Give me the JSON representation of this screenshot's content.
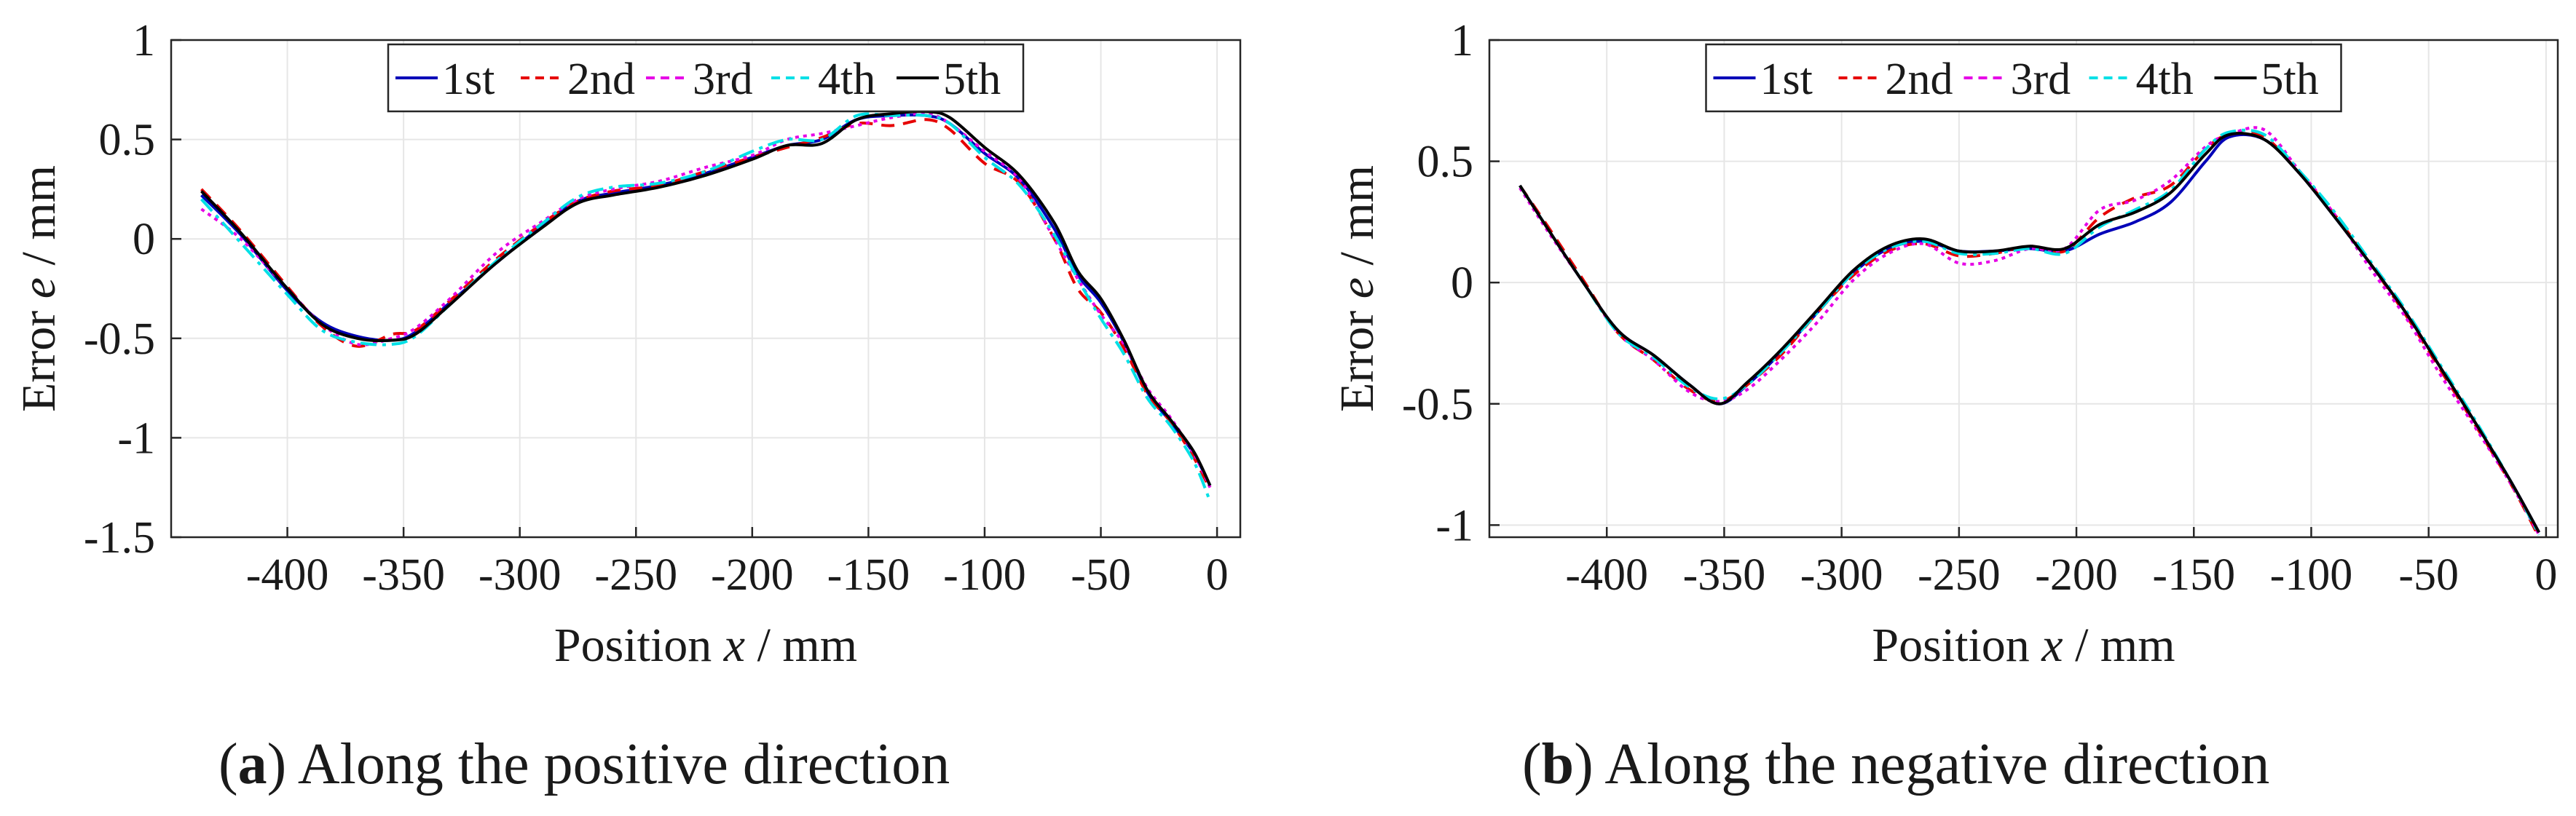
{
  "colors": {
    "1st": "#0000b8",
    "2nd": "#e60000",
    "3rd": "#e600e6",
    "4th": "#00e0e6",
    "5th": "#000000",
    "grid": "#e6e6e6",
    "axis": "#262626"
  },
  "chart_data": [
    {
      "type": "line",
      "panel_label": "a",
      "caption": "Along the positive direction",
      "xlabel_pre": "Position ",
      "xlabel_var": "x",
      "xlabel_post": " / mm",
      "ylabel_pre": "Error ",
      "ylabel_var": "e",
      "ylabel_post": " / mm",
      "xlim": [
        -450,
        10
      ],
      "ylim": [
        -1.5,
        1
      ],
      "xticks": [
        -400,
        -350,
        -300,
        -250,
        -200,
        -150,
        -100,
        -50,
        0
      ],
      "xtick_labels": [
        "-400",
        "-350",
        "-300",
        "-250",
        "-200",
        "-150",
        "-100",
        "-50",
        "0"
      ],
      "yticks": [
        1,
        0.5,
        0,
        -0.5,
        -1,
        -1.5
      ],
      "ytick_labels": [
        "1",
        "0.5",
        "0",
        "-0.5",
        "-1",
        "-1.5"
      ],
      "grid": true,
      "legend_position": "top-center",
      "x": [
        -437,
        -420,
        -400,
        -385,
        -370,
        -355,
        -345,
        -330,
        -310,
        -290,
        -275,
        -260,
        -240,
        -220,
        -200,
        -185,
        -170,
        -155,
        -140,
        -125,
        -115,
        -100,
        -85,
        -70,
        -60,
        -50,
        -40,
        -30,
        -20,
        -10,
        -3
      ],
      "series": [
        {
          "name": "1st",
          "values": [
            0.22,
            0.02,
            -0.26,
            -0.42,
            -0.49,
            -0.51,
            -0.47,
            -0.32,
            -0.12,
            0.07,
            0.19,
            0.23,
            0.27,
            0.33,
            0.41,
            0.47,
            0.5,
            0.6,
            0.62,
            0.62,
            0.58,
            0.43,
            0.3,
            0.05,
            -0.18,
            -0.32,
            -0.52,
            -0.77,
            -0.92,
            -1.08,
            -1.24
          ]
        },
        {
          "name": "2nd",
          "values": [
            0.25,
            0.04,
            -0.24,
            -0.44,
            -0.54,
            -0.48,
            -0.46,
            -0.31,
            -0.1,
            0.08,
            0.19,
            0.24,
            0.27,
            0.34,
            0.41,
            0.46,
            0.51,
            0.58,
            0.57,
            0.6,
            0.55,
            0.38,
            0.28,
            0.0,
            -0.25,
            -0.37,
            -0.55,
            -0.78,
            -0.92,
            -1.1,
            -1.26
          ]
        },
        {
          "name": "3rd",
          "values": [
            0.15,
            0.0,
            -0.25,
            -0.43,
            -0.53,
            -0.5,
            -0.45,
            -0.3,
            -0.07,
            0.09,
            0.2,
            0.25,
            0.29,
            0.36,
            0.42,
            0.5,
            0.53,
            0.57,
            0.61,
            0.63,
            0.58,
            0.44,
            0.3,
            0.0,
            -0.2,
            -0.38,
            -0.53,
            -0.75,
            -0.9,
            -1.08,
            -1.25
          ]
        },
        {
          "name": "4th",
          "values": [
            0.2,
            -0.02,
            -0.28,
            -0.46,
            -0.52,
            -0.53,
            -0.49,
            -0.33,
            -0.11,
            0.08,
            0.21,
            0.26,
            0.28,
            0.34,
            0.44,
            0.5,
            0.5,
            0.62,
            0.62,
            0.62,
            0.58,
            0.41,
            0.27,
            0.02,
            -0.2,
            -0.4,
            -0.58,
            -0.8,
            -0.94,
            -1.12,
            -1.32
          ]
        },
        {
          "name": "5th",
          "values": [
            0.24,
            0.03,
            -0.25,
            -0.43,
            -0.5,
            -0.51,
            -0.48,
            -0.33,
            -0.12,
            0.06,
            0.18,
            0.22,
            0.26,
            0.32,
            0.4,
            0.47,
            0.48,
            0.6,
            0.63,
            0.64,
            0.61,
            0.46,
            0.32,
            0.08,
            -0.16,
            -0.3,
            -0.51,
            -0.76,
            -0.91,
            -1.07,
            -1.24
          ]
        }
      ]
    },
    {
      "type": "line",
      "panel_label": "b",
      "caption": "Along the negative direction",
      "xlabel_pre": "Position ",
      "xlabel_var": "x",
      "xlabel_post": " / mm",
      "ylabel_pre": "Error ",
      "ylabel_var": "e",
      "ylabel_post": " / mm",
      "xlim": [
        -450,
        5
      ],
      "ylim": [
        -1.05,
        1
      ],
      "xticks": [
        -400,
        -350,
        -300,
        -250,
        -200,
        -150,
        -100,
        -50,
        0
      ],
      "xtick_labels": [
        "-400",
        "-350",
        "-300",
        "-250",
        "-200",
        "-150",
        "-100",
        "-50",
        "0"
      ],
      "yticks": [
        1,
        0.5,
        0,
        -0.5,
        -1
      ],
      "ytick_labels": [
        "1",
        "0.5",
        "0",
        "-0.5",
        "-1"
      ],
      "grid": true,
      "legend_position": "top-center",
      "x": [
        -437,
        -425,
        -410,
        -395,
        -380,
        -365,
        -352,
        -340,
        -325,
        -310,
        -295,
        -280,
        -265,
        -250,
        -235,
        -220,
        -205,
        -190,
        -175,
        -160,
        -145,
        -135,
        -120,
        -105,
        -90,
        -75,
        -60,
        -45,
        -30,
        -15,
        -3
      ],
      "series": [
        {
          "name": "1st",
          "values": [
            0.4,
            0.22,
            0.0,
            -0.2,
            -0.3,
            -0.42,
            -0.5,
            -0.42,
            -0.28,
            -0.12,
            0.04,
            0.14,
            0.17,
            0.13,
            0.13,
            0.14,
            0.13,
            0.2,
            0.25,
            0.33,
            0.5,
            0.6,
            0.59,
            0.45,
            0.27,
            0.08,
            -0.12,
            -0.35,
            -0.58,
            -0.82,
            -1.03
          ]
        },
        {
          "name": "2nd",
          "values": [
            0.4,
            0.23,
            0.01,
            -0.21,
            -0.32,
            -0.44,
            -0.49,
            -0.42,
            -0.29,
            -0.12,
            0.03,
            0.13,
            0.16,
            0.11,
            0.12,
            0.15,
            0.13,
            0.27,
            0.35,
            0.4,
            0.55,
            0.61,
            0.6,
            0.45,
            0.28,
            0.08,
            -0.13,
            -0.36,
            -0.59,
            -0.83,
            -1.05
          ]
        },
        {
          "name": "3rd",
          "values": [
            0.39,
            0.21,
            0.0,
            -0.21,
            -0.32,
            -0.45,
            -0.49,
            -0.44,
            -0.31,
            -0.16,
            0.01,
            0.12,
            0.16,
            0.08,
            0.09,
            0.14,
            0.14,
            0.3,
            0.34,
            0.42,
            0.56,
            0.61,
            0.63,
            0.46,
            0.28,
            0.06,
            -0.14,
            -0.38,
            -0.6,
            -0.83,
            -1.04
          ]
        },
        {
          "name": "4th",
          "values": [
            0.4,
            0.22,
            0.0,
            -0.21,
            -0.31,
            -0.43,
            -0.48,
            -0.42,
            -0.28,
            -0.12,
            0.04,
            0.14,
            0.17,
            0.12,
            0.12,
            0.14,
            0.12,
            0.23,
            0.3,
            0.38,
            0.55,
            0.62,
            0.61,
            0.46,
            0.29,
            0.09,
            -0.11,
            -0.34,
            -0.57,
            -0.82,
            -1.04
          ]
        },
        {
          "name": "5th",
          "values": [
            0.4,
            0.22,
            0.0,
            -0.2,
            -0.3,
            -0.42,
            -0.5,
            -0.41,
            -0.27,
            -0.11,
            0.05,
            0.15,
            0.18,
            0.13,
            0.13,
            0.15,
            0.14,
            0.24,
            0.29,
            0.37,
            0.53,
            0.61,
            0.59,
            0.45,
            0.27,
            0.08,
            -0.12,
            -0.35,
            -0.58,
            -0.82,
            -1.03
          ]
        }
      ]
    }
  ]
}
